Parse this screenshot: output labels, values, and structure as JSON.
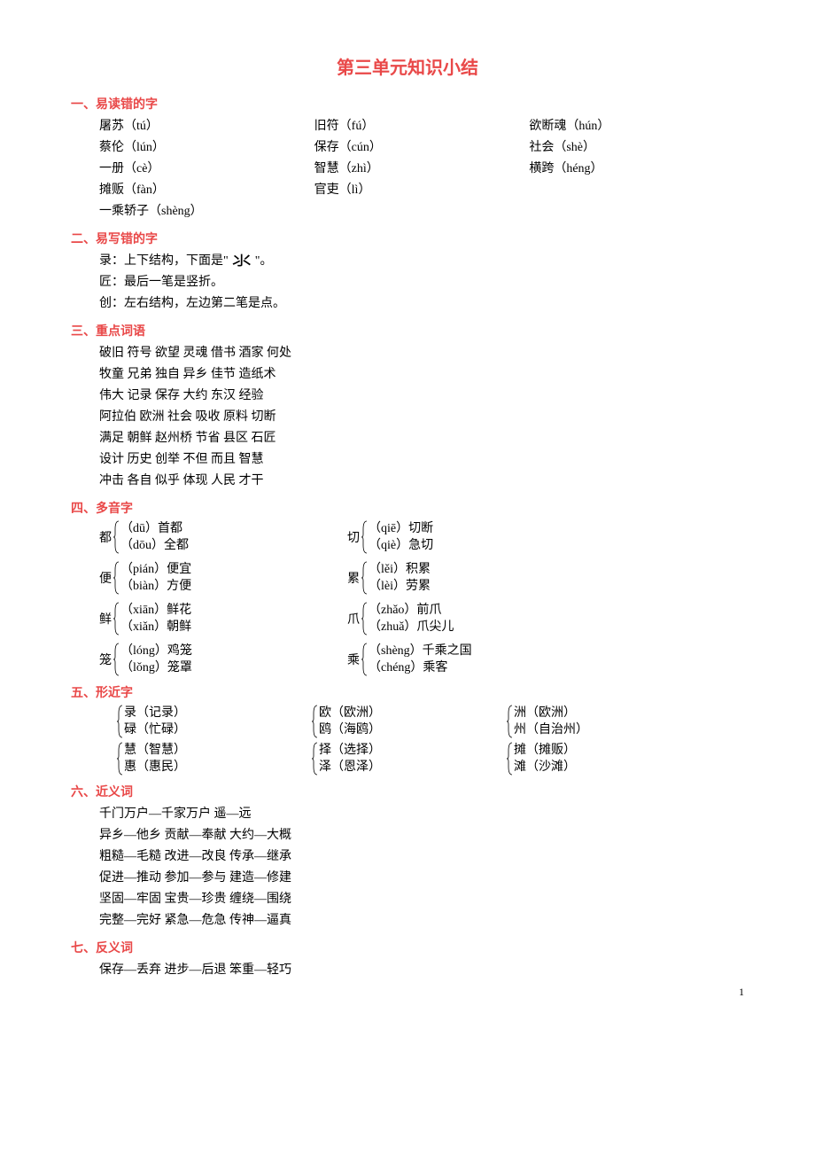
{
  "title": "第三单元知识小结",
  "s1": {
    "header": "一、易读错的字",
    "col1": [
      "屠苏（tú）",
      "蔡伦（lún）",
      "一册（cè）",
      "摊贩（fàn）",
      "一乘轿子（shèng）"
    ],
    "col2": [
      "旧符（fú）",
      "保存（cún）",
      "智慧（zhì）",
      "官吏（lì）"
    ],
    "col3": [
      "欲断魂（hún）",
      "社会（shè）",
      "横跨（héng）"
    ]
  },
  "s2": {
    "header": "二、易写错的字",
    "lines_pre": "录：上下结构，下面是\"",
    "lines_img": "氺",
    "lines_post": "\"。",
    "line2": "匠：最后一笔是竖折。",
    "line3": "创：左右结构，左边第二笔是点。"
  },
  "s3": {
    "header": "三、重点词语",
    "lines": [
      "破旧  符号  欲望  灵魂  借书  酒家  何处",
      "牧童  兄弟  独自  异乡  佳节  造纸术",
      "伟大  记录  保存  大约  东汉  经验",
      "阿拉伯  欧洲  社会  吸收  原料  切断",
      "满足  朝鲜  赵州桥  节省  县区  石匠",
      "设计  历史  创举  不但  而且  智慧",
      "冲击  各自  似乎  体现  人民  才干"
    ]
  },
  "s4": {
    "header": "四、多音字",
    "rows": [
      [
        {
          "char": "都",
          "a": "（dū）首都",
          "b": "（dōu）全都"
        },
        {
          "char": "切",
          "a": "（qiē）切断",
          "b": "（qiè）急切"
        }
      ],
      [
        {
          "char": "便",
          "a": "（pián）便宜",
          "b": "（biàn）方便"
        },
        {
          "char": "累",
          "a": "（lěi）积累",
          "b": "（lèi）劳累"
        }
      ],
      [
        {
          "char": "鲜",
          "a": "（xiān）鲜花",
          "b": "（xiǎn）朝鲜"
        },
        {
          "char": "爪",
          "a": "（zhǎo）前爪",
          "b": "（zhuǎ）爪尖儿"
        }
      ],
      [
        {
          "char": "笼",
          "a": "（lóng）鸡笼",
          "b": "（lǒng）笼罩"
        },
        {
          "char": "乘",
          "a": "（shèng）千乘之国",
          "b": "（chéng）乘客"
        }
      ]
    ]
  },
  "s5": {
    "header": "五、形近字",
    "rows": [
      [
        {
          "a": "录（记录）",
          "b": "碌（忙碌）"
        },
        {
          "a": "欧（欧洲）",
          "b": "鸥（海鸥）"
        },
        {
          "a": "洲（欧洲）",
          "b": "州（自治州）"
        }
      ],
      [
        {
          "a": "慧（智慧）",
          "b": "惠（惠民）"
        },
        {
          "a": "择（选择）",
          "b": "泽（恩泽）"
        },
        {
          "a": "摊（摊贩）",
          "b": "滩（沙滩）"
        }
      ]
    ]
  },
  "s6": {
    "header": "六、近义词",
    "lines": [
      "千门万户—千家万户  遥—远",
      "异乡—他乡  贡献—奉献  大约—大概",
      "粗糙—毛糙  改进—改良  传承—继承",
      "促进—推动  参加—参与  建造—修建",
      "坚固—牢固  宝贵—珍贵  缠绕—围绕",
      "完整—完好  紧急—危急  传神—逼真"
    ]
  },
  "s7": {
    "header": "七、反义词",
    "lines": [
      "保存—丢弃  进步—后退  笨重—轻巧"
    ]
  },
  "page_number": "1",
  "colors": {
    "title": "#e94848",
    "text": "#000000",
    "background": "#ffffff"
  }
}
